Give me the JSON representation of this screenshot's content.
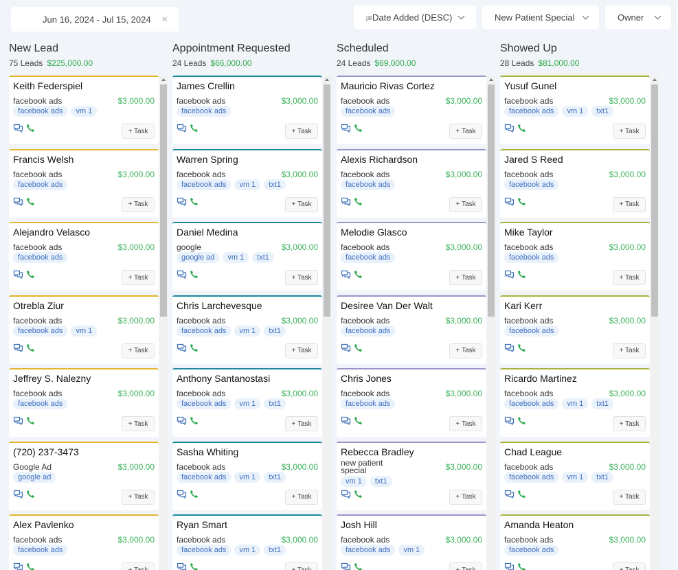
{
  "filters": {
    "date_range": "Jun 16, 2024 - Jul 15, 2024",
    "sort": "Date Added (DESC)",
    "pipeline": "New Patient Special",
    "owner": "Owner"
  },
  "columns": [
    {
      "title": "New Lead",
      "count": "75 Leads",
      "amount": "$225,000.00",
      "cards": [
        {
          "name": "Keith Federspiel",
          "source": "facebook ads",
          "value": "$3,000.00",
          "tags": [
            "facebook ads",
            "vm 1"
          ]
        },
        {
          "name": "Francis Welsh",
          "source": "facebook ads",
          "value": "$3,000.00",
          "tags": [
            "facebook ads"
          ]
        },
        {
          "name": "Alejandro Velasco",
          "source": "facebook ads",
          "value": "$3,000.00",
          "tags": [
            "facebook ads"
          ]
        },
        {
          "name": "Otrebla Ziur",
          "source": "facebook ads",
          "value": "$3,000.00",
          "tags": [
            "facebook ads",
            "vm 1"
          ]
        },
        {
          "name": "Jeffrey S. Nalezny",
          "source": "facebook ads",
          "value": "$3,000.00",
          "tags": [
            "facebook ads"
          ]
        },
        {
          "name": "(720) 237-3473",
          "source": "Google Ad",
          "value": "$3,000.00",
          "tags": [
            "google ad"
          ]
        },
        {
          "name": "Alex Pavlenko",
          "source": "facebook ads",
          "value": "$3,000.00",
          "tags": [
            "facebook ads"
          ]
        }
      ]
    },
    {
      "title": "Appointment Requested",
      "count": "24 Leads",
      "amount": "$66,000.00",
      "cards": [
        {
          "name": "James Crellin",
          "source": "facebook ads",
          "value": "$3,000.00",
          "tags": [
            "facebook ads"
          ]
        },
        {
          "name": "Warren Spring",
          "source": "facebook ads",
          "value": "$3,000.00",
          "tags": [
            "facebook ads",
            "vm 1",
            "txt1"
          ]
        },
        {
          "name": "Daniel Medina",
          "source": "google",
          "value": "$3,000.00",
          "tags": [
            "google ad",
            "vm 1",
            "txt1"
          ]
        },
        {
          "name": "Chris Larchevesque",
          "source": "facebook ads",
          "value": "$3,000.00",
          "tags": [
            "facebook ads",
            "vm 1",
            "txt1"
          ]
        },
        {
          "name": "Anthony Santanostasi",
          "source": "facebook ads",
          "value": "$3,000.00",
          "tags": [
            "facebook ads",
            "vm 1",
            "txt1"
          ]
        },
        {
          "name": "Sasha Whiting",
          "source": "facebook ads",
          "value": "$3,000.00",
          "tags": [
            "facebook ads",
            "vm 1",
            "txt1"
          ]
        },
        {
          "name": "Ryan Smart",
          "source": "facebook ads",
          "value": "$3,000.00",
          "tags": [
            "facebook ads",
            "vm 1",
            "txt1"
          ]
        }
      ]
    },
    {
      "title": "Scheduled",
      "count": "24 Leads",
      "amount": "$69,000.00",
      "cards": [
        {
          "name": "Mauricio Rivas Cortez",
          "source": "facebook ads",
          "value": "$3,000.00",
          "tags": [
            "facebook ads"
          ]
        },
        {
          "name": "Alexis Richardson",
          "source": "facebook ads",
          "value": "$3,000.00",
          "tags": [
            "facebook ads"
          ]
        },
        {
          "name": "Melodie Glasco",
          "source": "facebook ads",
          "value": "$3,000.00",
          "tags": [
            "facebook ads"
          ]
        },
        {
          "name": "Desiree Van Der Walt",
          "source": "facebook ads",
          "value": "$3,000.00",
          "tags": [
            "facebook ads"
          ]
        },
        {
          "name": "Chris Jones",
          "source": "facebook ads",
          "value": "$3,000.00",
          "tags": [
            "facebook ads"
          ]
        },
        {
          "name": "Rebecca Bradley",
          "source": "new patient special",
          "value": "$3,000.00",
          "tags": [
            "vm 1",
            "txt1"
          ]
        },
        {
          "name": "Josh Hill",
          "source": "facebook ads",
          "value": "$3,000.00",
          "tags": [
            "facebook ads",
            "vm 1"
          ]
        }
      ]
    },
    {
      "title": "Showed Up",
      "count": "28 Leads",
      "amount": "$81,000.00",
      "cards": [
        {
          "name": "Yusuf Gunel",
          "source": "facebook ads",
          "value": "$3,000.00",
          "tags": [
            "facebook ads",
            "vm 1",
            "txt1"
          ]
        },
        {
          "name": "Jared S Reed",
          "source": "facebook ads",
          "value": "$3,000.00",
          "tags": [
            "facebook ads"
          ]
        },
        {
          "name": "Mike Taylor",
          "source": "facebook ads",
          "value": "$3,000.00",
          "tags": [
            "facebook ads"
          ]
        },
        {
          "name": "Kari Kerr",
          "source": "facebook ads",
          "value": "$3,000.00",
          "tags": [
            "facebook ads"
          ]
        },
        {
          "name": "Ricardo Martinez",
          "source": "facebook ads",
          "value": "$3,000.00",
          "tags": [
            "facebook ads",
            "vm 1",
            "txt1"
          ]
        },
        {
          "name": "Chad League",
          "source": "facebook ads",
          "value": "$3,000.00",
          "tags": [
            "facebook ads",
            "vm 1",
            "txt1"
          ]
        },
        {
          "name": "Amanda Heaton",
          "source": "facebook ads",
          "value": "$3,000.00",
          "tags": [
            "facebook ads"
          ]
        }
      ]
    }
  ],
  "task_label": "+ Task",
  "colors": {
    "accent_green": "#3bb25a",
    "tag_bg": "#e9f1fb",
    "tag_text": "#3f6fc0",
    "icon_blue": "#3b6fb7",
    "phone_green": "#2eab4f"
  }
}
